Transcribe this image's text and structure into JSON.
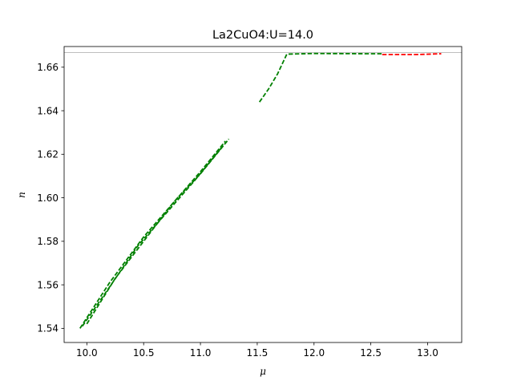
{
  "chart_data": {
    "type": "line",
    "title": "La2CuO4:U=14.0",
    "xlabel": "μ",
    "ylabel": "n",
    "xlim": [
      9.8,
      13.3
    ],
    "ylim": [
      1.5335,
      1.6695
    ],
    "xticks": [
      10.0,
      10.5,
      11.0,
      11.5,
      12.0,
      12.5,
      13.0
    ],
    "xtick_labels": [
      "10.0",
      "10.5",
      "11.0",
      "11.5",
      "12.0",
      "12.5",
      "13.0"
    ],
    "yticks": [
      1.54,
      1.56,
      1.58,
      1.6,
      1.62,
      1.64,
      1.66
    ],
    "ytick_labels": [
      "1.54",
      "1.56",
      "1.58",
      "1.60",
      "1.62",
      "1.64",
      "1.66"
    ],
    "grid": false,
    "reference_line": {
      "y": 1.6667,
      "color": "#aaaaaa"
    },
    "series": [
      {
        "color": "#008000",
        "style": "dashed",
        "segments": [
          {
            "x": [
              9.94,
              10.2,
              10.5,
              10.8,
              11.0,
              11.25
            ],
            "y": [
              1.54,
              1.561,
              1.582,
              1.6,
              1.611,
              1.627
            ]
          },
          {
            "x": [
              9.96,
              10.2,
              10.45,
              10.7,
              10.95,
              11.2
            ],
            "y": [
              1.541,
              1.559,
              1.578,
              1.593,
              1.608,
              1.624
            ]
          },
          {
            "x": [
              10.0,
              10.25,
              10.5,
              10.75,
              11.0,
              11.22
            ],
            "y": [
              1.542,
              1.563,
              1.58,
              1.597,
              1.612,
              1.626
            ]
          },
          {
            "x": [
              11.52,
              11.6,
              11.68,
              11.76,
              12.0,
              12.5,
              12.6
            ],
            "y": [
              1.644,
              1.65,
              1.657,
              1.666,
              1.6663,
              1.6662,
              1.6662
            ]
          }
        ]
      },
      {
        "color": "#ff0000",
        "style": "dashed",
        "segments": [
          {
            "x": [
              12.6,
              12.9,
              13.12
            ],
            "y": [
              1.6658,
              1.6658,
              1.6662
            ]
          }
        ]
      }
    ]
  }
}
